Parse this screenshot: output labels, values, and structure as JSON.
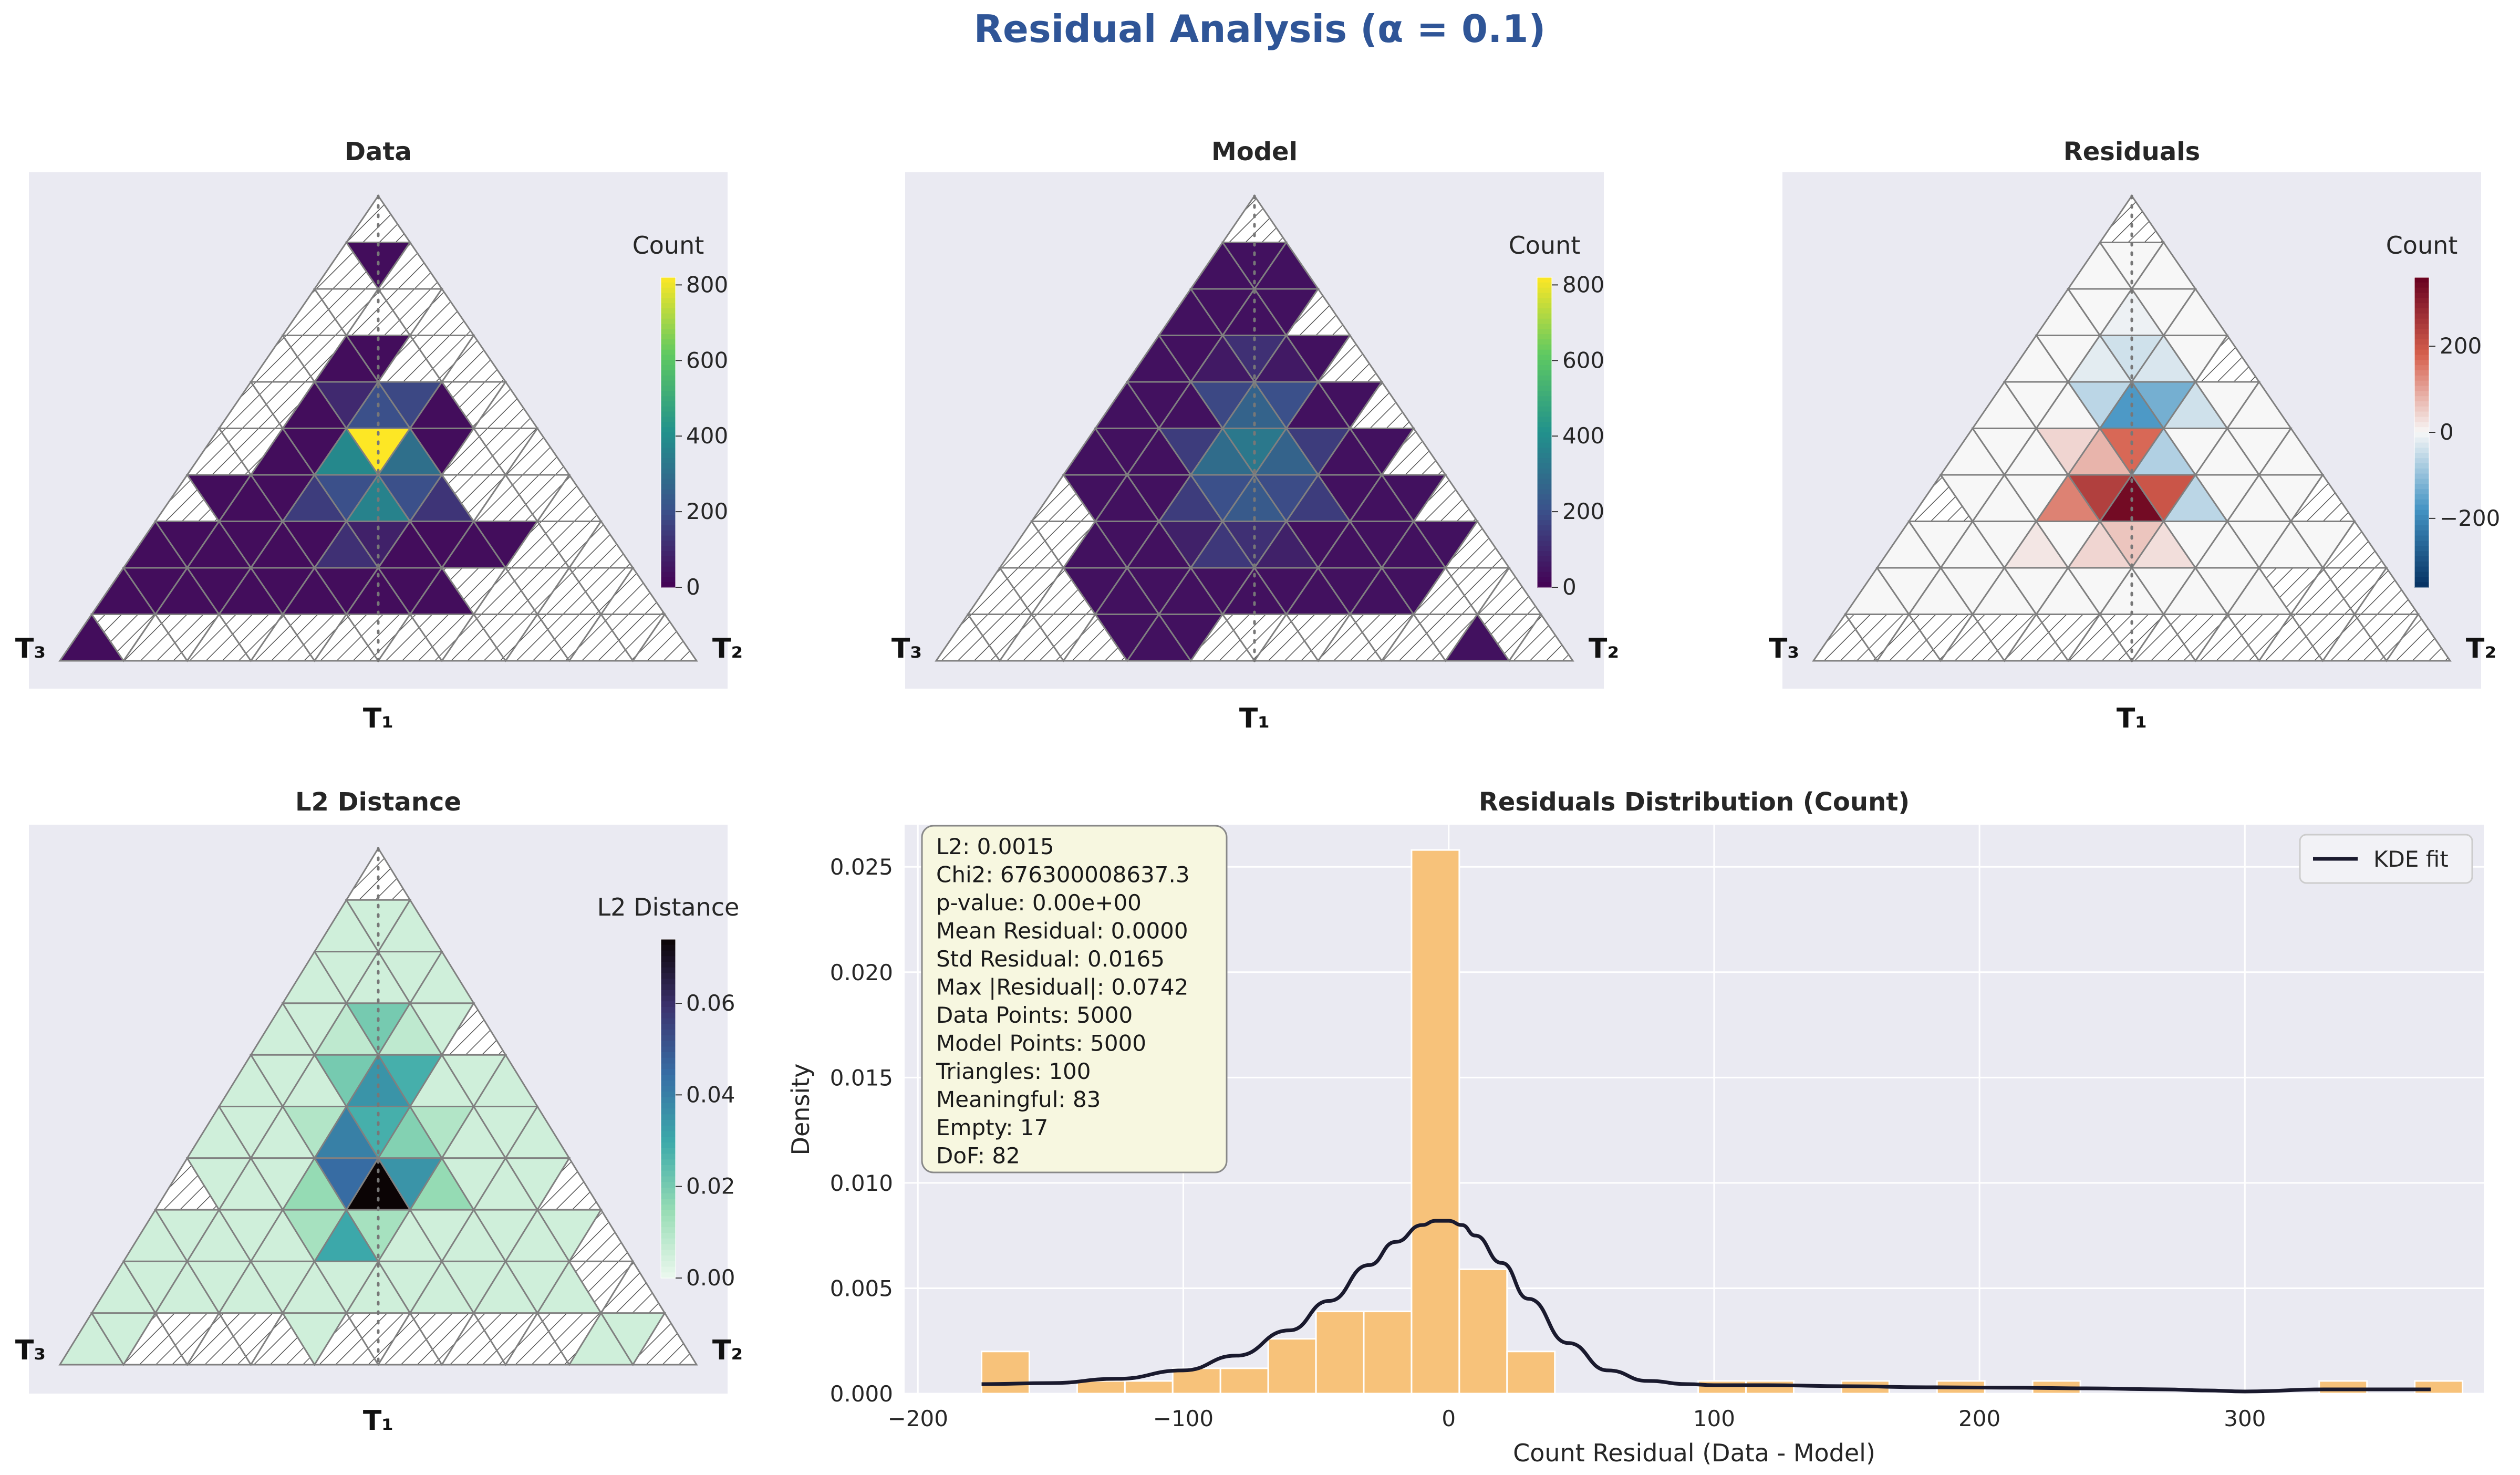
{
  "figure": {
    "title": "Residual Analysis (α = 0.1)",
    "title_color": "#2f5597"
  },
  "colors": {
    "panel_bg": "#eaeaf2",
    "triangle_edge": "#808080",
    "hatch": "#555555",
    "hist_bar": "#f7c27a",
    "kde_line": "#1a1a2e",
    "stats_box_bg": "#f7f7e0"
  },
  "corner_labels": {
    "top": "T₁",
    "left": "T₃",
    "right": "T₂"
  },
  "chart_data": [
    {
      "id": "data",
      "type": "heatmap",
      "title": "Data",
      "colormap": "viridis",
      "colorbar": {
        "label": "Count",
        "vmin": 0,
        "vmax": 820,
        "ticks": [
          0,
          200,
          400,
          600,
          800
        ]
      },
      "grid_rows": 10,
      "empty_cells": [
        [
          0,
          0
        ],
        [
          1,
          0
        ],
        [
          1,
          2
        ],
        [
          2,
          0
        ],
        [
          2,
          1
        ],
        [
          2,
          3
        ],
        [
          2,
          4
        ],
        [
          3,
          0
        ],
        [
          3,
          1
        ],
        [
          3,
          5
        ],
        [
          3,
          6
        ],
        [
          4,
          0
        ],
        [
          4,
          1
        ],
        [
          4,
          7
        ],
        [
          4,
          8
        ],
        [
          5,
          0
        ],
        [
          5,
          10
        ],
        [
          6,
          0
        ],
        [
          6,
          12
        ],
        [
          7,
          14
        ],
        [
          8,
          15
        ],
        [
          8,
          16
        ],
        [
          9,
          2
        ],
        [
          9,
          3
        ],
        [
          9,
          4
        ],
        [
          9,
          5
        ],
        [
          9,
          6
        ],
        [
          9,
          7
        ],
        [
          9,
          8
        ],
        [
          9,
          9
        ],
        [
          9,
          10
        ],
        [
          9,
          11
        ],
        [
          9,
          12
        ],
        [
          9,
          13
        ],
        [
          9,
          14
        ],
        [
          9,
          15
        ],
        [
          9,
          16
        ],
        [
          9,
          17
        ],
        [
          9,
          18
        ],
        [
          9,
          19
        ],
        [
          8,
          11
        ],
        [
          8,
          12
        ],
        [
          8,
          13
        ],
        [
          8,
          14
        ],
        [
          7,
          13
        ],
        [
          7,
          12
        ],
        [
          6,
          10
        ],
        [
          6,
          11
        ],
        [
          5,
          1
        ],
        [
          5,
          9
        ],
        [
          3,
          4
        ],
        [
          2,
          2
        ],
        [
          5,
          8
        ],
        [
          6,
          9
        ],
        [
          9,
          1
        ]
      ],
      "cells": {
        "5,5": 820,
        "5,4": 380,
        "5,6": 300,
        "6,6": 360,
        "6,5": 200,
        "6,7": 200,
        "4,4": 200,
        "4,5": 180,
        "4,3": 100,
        "6,4": 150,
        "7,6": 120,
        "6,8": 130,
        "7,7": 80
      },
      "default_value": 30
    },
    {
      "id": "model",
      "type": "heatmap",
      "title": "Model",
      "colormap": "viridis",
      "colorbar": {
        "label": "Count",
        "vmin": 0,
        "vmax": 820,
        "ticks": [
          0,
          200,
          400,
          600,
          800
        ]
      },
      "grid_rows": 10,
      "empty_cells": [
        [
          0,
          0
        ],
        [
          2,
          4
        ],
        [
          3,
          6
        ],
        [
          4,
          8
        ],
        [
          5,
          10
        ],
        [
          6,
          0
        ],
        [
          6,
          12
        ],
        [
          7,
          0
        ],
        [
          7,
          1
        ],
        [
          7,
          14
        ],
        [
          8,
          0
        ],
        [
          8,
          1
        ],
        [
          8,
          2
        ],
        [
          8,
          14
        ],
        [
          8,
          15
        ],
        [
          8,
          16
        ],
        [
          9,
          0
        ],
        [
          9,
          1
        ],
        [
          9,
          2
        ],
        [
          9,
          3
        ],
        [
          9,
          4
        ],
        [
          9,
          8
        ],
        [
          9,
          9
        ],
        [
          9,
          10
        ],
        [
          9,
          11
        ],
        [
          9,
          12
        ],
        [
          9,
          13
        ],
        [
          9,
          14
        ],
        [
          9,
          15
        ],
        [
          9,
          17
        ],
        [
          9,
          18
        ]
      ],
      "cells": {
        "5,5": 330,
        "5,4": 290,
        "5,6": 260,
        "4,4": 260,
        "4,5": 200,
        "4,3": 180,
        "6,6": 230,
        "6,5": 200,
        "6,7": 190,
        "3,3": 120,
        "6,4": 150,
        "6,8": 150,
        "7,6": 140,
        "7,7": 120,
        "5,3": 150,
        "5,7": 150,
        "3,2": 60,
        "3,4": 60,
        "7,5": 80,
        "7,8": 80
      },
      "default_value": 40
    },
    {
      "id": "residuals",
      "type": "heatmap",
      "title": "Residuals",
      "colormap": "RdBu_r",
      "colorbar": {
        "label": "Count",
        "vmin": -360,
        "vmax": 360,
        "ticks": [
          -200,
          0,
          200
        ]
      },
      "grid_rows": 10,
      "empty_cells": [
        [
          0,
          0
        ],
        [
          3,
          6
        ],
        [
          6,
          0
        ],
        [
          6,
          12
        ],
        [
          7,
          14
        ],
        [
          8,
          13
        ],
        [
          8,
          14
        ],
        [
          8,
          15
        ],
        [
          8,
          16
        ],
        [
          9,
          0
        ],
        [
          9,
          1
        ],
        [
          9,
          2
        ],
        [
          9,
          3
        ],
        [
          9,
          4
        ],
        [
          9,
          5
        ],
        [
          9,
          6
        ],
        [
          9,
          7
        ],
        [
          9,
          8
        ],
        [
          9,
          9
        ],
        [
          9,
          10
        ],
        [
          9,
          11
        ],
        [
          9,
          12
        ],
        [
          9,
          13
        ],
        [
          9,
          14
        ],
        [
          9,
          15
        ],
        [
          9,
          16
        ],
        [
          9,
          17
        ],
        [
          9,
          18
        ]
      ],
      "cells": {
        "6,5": 240,
        "6,6": 340,
        "6,7": 200,
        "6,4": 140,
        "5,5": 170,
        "5,6": -70,
        "4,4": -170,
        "4,5": -130,
        "4,3": -60,
        "4,6": -40,
        "3,3": -40,
        "3,2": -20,
        "3,4": -30,
        "6,8": -60,
        "5,4": 80,
        "5,3": 40,
        "7,6": 40,
        "7,7": 60,
        "7,8": 30,
        "7,4": 20,
        "2,2": -10
      },
      "default_value": 0
    },
    {
      "id": "l2",
      "type": "heatmap",
      "title": "L2 Distance",
      "colormap": "mako_r",
      "colorbar": {
        "label": "L2 Distance",
        "vmin": 0,
        "vmax": 0.074,
        "ticks": [
          0.0,
          0.02,
          0.04,
          0.06
        ],
        "tick_labels": [
          "0.00",
          "0.02",
          "0.04",
          "0.06"
        ]
      },
      "grid_rows": 10,
      "empty_cells": [
        [
          0,
          0
        ],
        [
          3,
          6
        ],
        [
          6,
          0
        ],
        [
          6,
          12
        ],
        [
          7,
          14
        ],
        [
          8,
          15
        ],
        [
          8,
          16
        ],
        [
          9,
          2
        ],
        [
          9,
          3
        ],
        [
          9,
          4
        ],
        [
          9,
          5
        ],
        [
          9,
          6
        ],
        [
          9,
          8
        ],
        [
          9,
          9
        ],
        [
          9,
          10
        ],
        [
          9,
          11
        ],
        [
          9,
          12
        ],
        [
          9,
          13
        ],
        [
          9,
          14
        ],
        [
          9,
          15
        ],
        [
          9,
          18
        ],
        [
          9,
          19
        ]
      ],
      "cells": {
        "6,6": 0.074,
        "6,5": 0.045,
        "6,7": 0.035,
        "5,5": 0.028,
        "5,4": 0.04,
        "5,6": 0.018,
        "4,4": 0.035,
        "4,5": 0.028,
        "4,3": 0.02,
        "3,3": 0.02,
        "6,4": 0.015,
        "7,6": 0.03,
        "7,7": 0.012,
        "6,8": 0.015,
        "5,3": 0.01,
        "5,7": 0.01,
        "7,5": 0.012,
        "3,2": 0.008,
        "3,4": 0.008
      },
      "default_value": 0.005
    },
    {
      "id": "distribution",
      "type": "bar",
      "title": "Residuals Distribution (Count)",
      "xlabel": "Count Residual (Data - Model)",
      "ylabel": "Density",
      "xlim": [
        -205,
        390
      ],
      "ylim": [
        0,
        0.027
      ],
      "xticks": [
        -200,
        -100,
        0,
        100,
        200,
        300
      ],
      "xtick_labels": [
        "−200",
        "−100",
        "0",
        "100",
        "200",
        "300"
      ],
      "yticks": [
        0.0,
        0.005,
        0.01,
        0.015,
        0.02,
        0.025
      ],
      "ytick_labels": [
        "0.000",
        "0.005",
        "0.010",
        "0.015",
        "0.020",
        "0.025"
      ],
      "bin_edges": [
        -176,
        -158,
        -140,
        -122,
        -104,
        -86,
        -68,
        -50,
        -32,
        -14,
        4,
        22,
        40,
        58,
        76,
        94,
        112,
        130,
        148,
        166,
        184,
        202,
        220,
        238,
        256,
        274,
        292,
        310,
        328,
        346,
        364,
        382
      ],
      "bar_values": [
        0.002,
        0.0,
        0.0006,
        0.0006,
        0.0012,
        0.0012,
        0.0026,
        0.0039,
        0.0039,
        0.0258,
        0.0059,
        0.002,
        0.0,
        0.0,
        0.0,
        0.0006,
        0.0006,
        0.0,
        0.0006,
        0.0,
        0.0006,
        0.0,
        0.0006,
        0.0,
        0.0,
        0.0,
        0.0,
        0.0,
        0.0006,
        0.0,
        0.0006
      ],
      "kde": {
        "name": "KDE fit",
        "x": [
          -176,
          -150,
          -125,
          -100,
          -80,
          -60,
          -45,
          -30,
          -20,
          -10,
          -5,
          0,
          5,
          10,
          20,
          30,
          45,
          60,
          75,
          90,
          100,
          120,
          150,
          180,
          210,
          240,
          270,
          285,
          300,
          330,
          355,
          370
        ],
        "y": [
          0.00045,
          0.0005,
          0.0007,
          0.0011,
          0.0018,
          0.003,
          0.0044,
          0.0061,
          0.0072,
          0.008,
          0.0082,
          0.0082,
          0.008,
          0.0075,
          0.0062,
          0.0045,
          0.0024,
          0.0011,
          0.0006,
          0.00045,
          0.0004,
          0.0004,
          0.00035,
          0.0003,
          0.00028,
          0.00025,
          0.0002,
          0.00015,
          0.0001,
          0.0002,
          0.0002,
          0.0002
        ]
      },
      "legend": {
        "label": "KDE fit",
        "placement": "top-right"
      },
      "stats": [
        "L2: 0.0015",
        "Chi2: 676300008637.3",
        "p-value: 0.00e+00",
        "Mean Residual: 0.0000",
        "Std Residual: 0.0165",
        "Max |Residual|: 0.0742",
        "Data Points: 5000",
        "Model Points: 5000",
        "Triangles: 100",
        "Meaningful: 83",
        "Empty: 17",
        "DoF: 82"
      ]
    }
  ]
}
